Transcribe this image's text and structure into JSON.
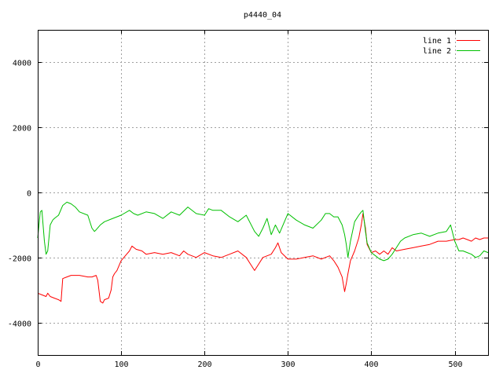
{
  "chart_data": {
    "type": "line",
    "title": "p4440_04",
    "xlabel": "",
    "ylabel": "",
    "xlim": [
      0,
      540
    ],
    "ylim": [
      -5000,
      5000
    ],
    "xticks": [
      0,
      100,
      200,
      300,
      400,
      500
    ],
    "yticks": [
      -4000,
      -2000,
      0,
      2000,
      4000
    ],
    "grid": true,
    "legend_position": "top-right",
    "series": [
      {
        "name": "line 1",
        "color": "#ff0000",
        "x": [
          0,
          5,
          10,
          12,
          15,
          20,
          25,
          28,
          30,
          35,
          40,
          50,
          60,
          65,
          70,
          72,
          75,
          78,
          80,
          85,
          88,
          90,
          92,
          95,
          100,
          105,
          110,
          113,
          118,
          125,
          130,
          140,
          150,
          160,
          170,
          175,
          180,
          190,
          200,
          210,
          220,
          230,
          240,
          250,
          255,
          260,
          265,
          270,
          280,
          285,
          288,
          292,
          300,
          310,
          320,
          330,
          340,
          345,
          350,
          355,
          360,
          365,
          368,
          370,
          372,
          375,
          380,
          385,
          388,
          390,
          393,
          395,
          400,
          405,
          410,
          415,
          420,
          425,
          430,
          440,
          450,
          460,
          470,
          480,
          490,
          500,
          505,
          510,
          515,
          520,
          525,
          530,
          535,
          540
        ],
        "values": [
          -3100,
          -3150,
          -3200,
          -3100,
          -3200,
          -3250,
          -3300,
          -3350,
          -2650,
          -2600,
          -2550,
          -2550,
          -2600,
          -2600,
          -2550,
          -2700,
          -3350,
          -3400,
          -3300,
          -3250,
          -3000,
          -2600,
          -2500,
          -2400,
          -2100,
          -1950,
          -1800,
          -1650,
          -1750,
          -1800,
          -1900,
          -1850,
          -1900,
          -1850,
          -1950,
          -1800,
          -1900,
          -2000,
          -1850,
          -1950,
          -2000,
          -1900,
          -1800,
          -2000,
          -2200,
          -2400,
          -2200,
          -2000,
          -1900,
          -1700,
          -1550,
          -1850,
          -2050,
          -2050,
          -2000,
          -1950,
          -2050,
          -2000,
          -1950,
          -2100,
          -2300,
          -2600,
          -3050,
          -2800,
          -2500,
          -2100,
          -1800,
          -1400,
          -1000,
          -650,
          -1100,
          -1600,
          -1850,
          -1800,
          -1900,
          -1800,
          -1900,
          -1700,
          -1800,
          -1750,
          -1700,
          -1650,
          -1600,
          -1500,
          -1500,
          -1450,
          -1450,
          -1400,
          -1450,
          -1500,
          -1400,
          -1450,
          -1400,
          -1400
        ]
      },
      {
        "name": "line 2",
        "color": "#00c000",
        "x": [
          0,
          3,
          5,
          8,
          10,
          12,
          15,
          18,
          20,
          25,
          30,
          35,
          40,
          45,
          50,
          60,
          65,
          68,
          70,
          75,
          80,
          90,
          100,
          110,
          115,
          120,
          130,
          140,
          150,
          160,
          170,
          180,
          190,
          200,
          205,
          210,
          220,
          230,
          240,
          250,
          260,
          265,
          270,
          275,
          280,
          285,
          290,
          300,
          310,
          320,
          330,
          340,
          345,
          350,
          355,
          360,
          365,
          368,
          370,
          372,
          375,
          380,
          385,
          388,
          390,
          393,
          395,
          400,
          405,
          410,
          415,
          420,
          425,
          430,
          435,
          440,
          450,
          460,
          470,
          480,
          490,
          495,
          500,
          505,
          510,
          515,
          520,
          525,
          530,
          535,
          540
        ],
        "values": [
          -1400,
          -600,
          -550,
          -1500,
          -1900,
          -1800,
          -1000,
          -850,
          -800,
          -700,
          -400,
          -300,
          -350,
          -450,
          -600,
          -700,
          -1100,
          -1200,
          -1150,
          -1000,
          -900,
          -800,
          -700,
          -550,
          -650,
          -700,
          -600,
          -650,
          -800,
          -600,
          -700,
          -450,
          -650,
          -700,
          -500,
          -550,
          -550,
          -750,
          -900,
          -700,
          -1200,
          -1350,
          -1100,
          -800,
          -1300,
          -1000,
          -1250,
          -650,
          -850,
          -1000,
          -1100,
          -850,
          -650,
          -650,
          -750,
          -750,
          -1000,
          -1300,
          -1600,
          -2000,
          -1500,
          -900,
          -700,
          -600,
          -550,
          -1200,
          -1550,
          -1850,
          -1950,
          -2050,
          -2100,
          -2050,
          -1900,
          -1700,
          -1500,
          -1400,
          -1300,
          -1250,
          -1350,
          -1250,
          -1200,
          -1000,
          -1500,
          -1800,
          -1800,
          -1850,
          -1900,
          -2000,
          -1950,
          -1800,
          -1850
        ]
      }
    ]
  }
}
